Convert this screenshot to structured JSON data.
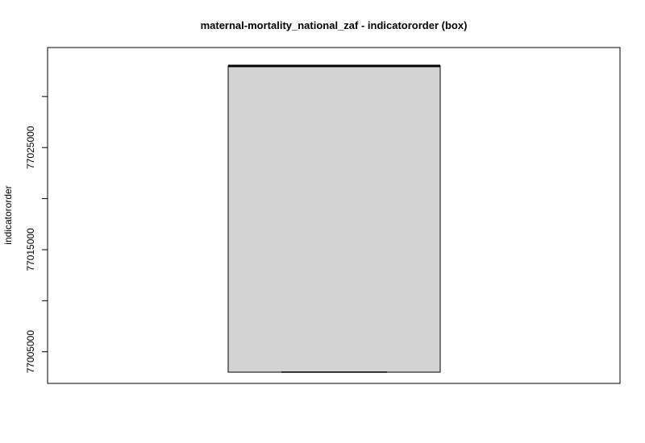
{
  "chart_data": {
    "type": "box",
    "title": "maternal-mortality_national_zaf - indicatororder (box)",
    "xlabel": "",
    "ylabel": "indicatororder",
    "ylim": [
      77001900,
      77034800
    ],
    "yticks": [
      77000000,
      77005000,
      77010000,
      77015000,
      77020000,
      77025000,
      77030000,
      77035000
    ],
    "ytick_labels": [
      "77005000",
      "77015000",
      "77025000"
    ],
    "box": {
      "min": 77003000,
      "q1": 77003000,
      "median": 77033000,
      "q3": 77033000,
      "max": 77033000
    },
    "colors": {
      "box_fill": "#d3d3d3",
      "stroke": "#000000"
    },
    "grid": false
  }
}
